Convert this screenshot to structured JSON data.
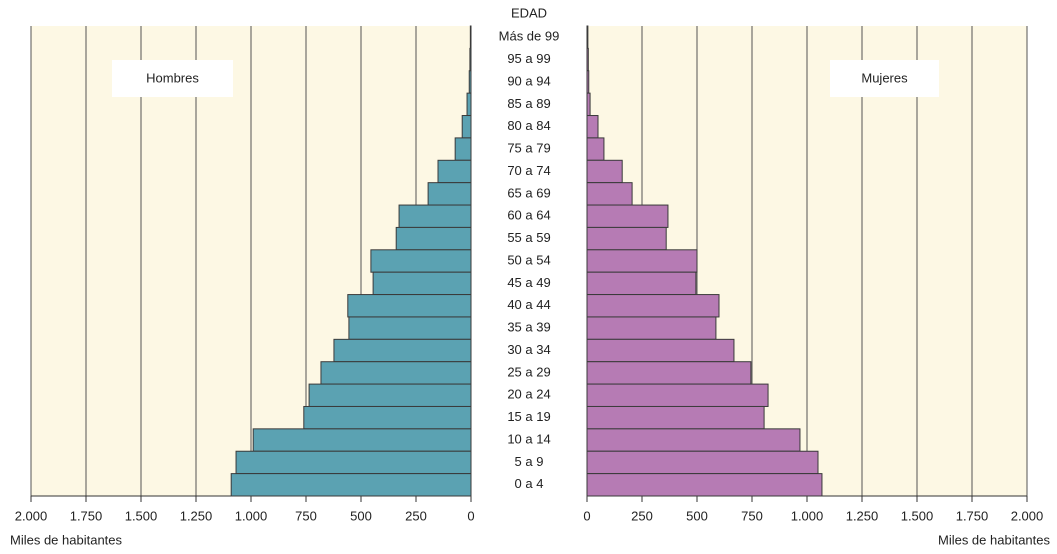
{
  "chart_data": {
    "type": "pyramid",
    "y_label": "EDAD",
    "x_label": "Miles de habitantes",
    "categories": [
      "Más de 99",
      "95 a 99",
      "90 a 94",
      "85 a 89",
      "80 a 84",
      "75 a 79",
      "70 a 74",
      "65 a 69",
      "60 a 64",
      "55 a 59",
      "50 a 54",
      "45 a 49",
      "40 a 44",
      "35 a 39",
      "30 a 34",
      "25 a 29",
      "20 a 24",
      "15 a 19",
      "10 a 14",
      "5 a 9",
      "0 a 4"
    ],
    "series": [
      {
        "name": "Hombres",
        "color": "#5ba2b2",
        "values": [
          3,
          5,
          8,
          18,
          40,
          72,
          150,
          195,
          327,
          340,
          455,
          445,
          560,
          555,
          623,
          682,
          736,
          760,
          990,
          1068,
          1090
        ]
      },
      {
        "name": "Mujeres",
        "color": "#b67bb4",
        "values": [
          4,
          6,
          8,
          14,
          50,
          77,
          160,
          205,
          368,
          360,
          500,
          495,
          600,
          586,
          668,
          745,
          823,
          805,
          968,
          1050,
          1068
        ]
      }
    ],
    "xlim": [
      0,
      2000
    ],
    "xticks": [
      0,
      250,
      500,
      750,
      {
        "value": 1000,
        "label": "1.000"
      },
      {
        "value": 1250,
        "label": "1.250"
      },
      {
        "value": 1500,
        "label": "1.500"
      },
      {
        "value": 1750,
        "label": "1.750"
      },
      {
        "value": 2000,
        "label": "2.000"
      }
    ],
    "grid": true,
    "background": "#fdf8e4"
  }
}
